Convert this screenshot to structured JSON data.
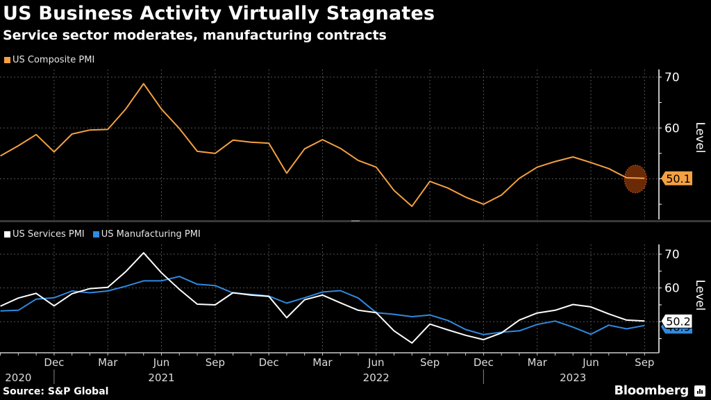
{
  "title": "US Business Activity Virtually Stagnates",
  "subtitle": "Service sector moderates, manufacturing contracts",
  "source": "Source: S&P Global",
  "brand": "Bloomberg",
  "chart_data": [
    {
      "type": "line",
      "panel": "top",
      "x": [
        "2020-09",
        "2020-10",
        "2020-11",
        "2020-12",
        "2021-01",
        "2021-02",
        "2021-03",
        "2021-04",
        "2021-05",
        "2021-06",
        "2021-07",
        "2021-08",
        "2021-09",
        "2021-10",
        "2021-11",
        "2021-12",
        "2022-01",
        "2022-02",
        "2022-03",
        "2022-04",
        "2022-05",
        "2022-06",
        "2022-07",
        "2022-08",
        "2022-09",
        "2022-10",
        "2022-11",
        "2022-12",
        "2023-01",
        "2023-02",
        "2023-03",
        "2023-04",
        "2023-05",
        "2023-06",
        "2023-07",
        "2023-08",
        "2023-09"
      ],
      "series": [
        {
          "name": "US Composite PMI",
          "color": "#f5a142",
          "values": [
            54.5,
            56.5,
            58.7,
            55.3,
            58.8,
            59.6,
            59.7,
            63.7,
            68.7,
            63.7,
            59.9,
            55.4,
            55.0,
            57.6,
            57.2,
            57.0,
            51.1,
            55.9,
            57.7,
            56.0,
            53.6,
            52.3,
            47.7,
            44.6,
            49.5,
            48.2,
            46.4,
            45.0,
            46.8,
            50.1,
            52.3,
            53.4,
            54.3,
            53.2,
            52.0,
            50.2,
            50.1
          ],
          "last_label": "50.1"
        }
      ],
      "ylabel": "Level",
      "ylim": [
        42,
        71
      ],
      "yticks": [
        70,
        60
      ],
      "minor_yticks": [
        65,
        55,
        50,
        45
      ],
      "grid": true,
      "legend": "top-left",
      "highlight": "last-point"
    },
    {
      "type": "line",
      "panel": "bottom",
      "x": [
        "2020-09",
        "2020-10",
        "2020-11",
        "2020-12",
        "2021-01",
        "2021-02",
        "2021-03",
        "2021-04",
        "2021-05",
        "2021-06",
        "2021-07",
        "2021-08",
        "2021-09",
        "2021-10",
        "2021-11",
        "2021-12",
        "2022-01",
        "2022-02",
        "2022-03",
        "2022-04",
        "2022-05",
        "2022-06",
        "2022-07",
        "2022-08",
        "2022-09",
        "2022-10",
        "2022-11",
        "2022-12",
        "2023-01",
        "2023-02",
        "2023-03",
        "2023-04",
        "2023-05",
        "2023-06",
        "2023-07",
        "2023-08",
        "2023-09"
      ],
      "series": [
        {
          "name": "US Services PMI",
          "color": "#ffffff",
          "values": [
            54.6,
            57.0,
            58.4,
            54.7,
            58.3,
            59.8,
            60.2,
            64.8,
            70.4,
            64.5,
            59.6,
            55.2,
            55.0,
            58.6,
            57.9,
            57.5,
            51.2,
            56.5,
            57.9,
            55.6,
            53.4,
            52.7,
            47.3,
            43.7,
            49.3,
            47.6,
            46.0,
            44.7,
            46.7,
            50.5,
            52.6,
            53.4,
            55.1,
            54.4,
            52.3,
            50.5,
            50.2
          ],
          "last_label": "50.2"
        },
        {
          "name": "US Manufacturing PMI",
          "color": "#2f8ae0",
          "values": [
            53.2,
            53.4,
            56.7,
            57.1,
            59.1,
            58.6,
            59.1,
            60.5,
            62.1,
            62.1,
            63.4,
            61.1,
            60.7,
            58.5,
            58.1,
            57.6,
            55.5,
            57.1,
            58.8,
            59.2,
            57.0,
            52.7,
            52.2,
            51.5,
            52.0,
            50.4,
            47.7,
            46.2,
            46.9,
            47.3,
            49.2,
            50.2,
            48.4,
            46.3,
            49.0,
            47.9,
            48.9
          ],
          "last_label": "48.9"
        }
      ],
      "ylabel": "Level",
      "ylim": [
        40,
        73
      ],
      "yticks": [
        70,
        60
      ],
      "minor_yticks": [
        65,
        55,
        50,
        45
      ],
      "grid": true,
      "legend": "top-left"
    }
  ],
  "x_axis": {
    "month_labels": [
      {
        "label": "Dec",
        "date": "2020-12"
      },
      {
        "label": "Mar",
        "date": "2021-03"
      },
      {
        "label": "Jun",
        "date": "2021-06"
      },
      {
        "label": "Sep",
        "date": "2021-09"
      },
      {
        "label": "Dec",
        "date": "2021-12"
      },
      {
        "label": "Mar",
        "date": "2022-03"
      },
      {
        "label": "Jun",
        "date": "2022-06"
      },
      {
        "label": "Sep",
        "date": "2022-09"
      },
      {
        "label": "Dec",
        "date": "2022-12"
      },
      {
        "label": "Mar",
        "date": "2023-03"
      },
      {
        "label": "Jun",
        "date": "2023-06"
      },
      {
        "label": "Sep",
        "date": "2023-09"
      }
    ],
    "year_labels": [
      {
        "label": "2020",
        "date": "2020-10"
      },
      {
        "label": "2021",
        "date": "2021-06"
      },
      {
        "label": "2022",
        "date": "2022-06"
      },
      {
        "label": "2023",
        "date": "2023-05"
      }
    ],
    "year_separators": [
      "2020-12",
      "2022-12"
    ]
  }
}
